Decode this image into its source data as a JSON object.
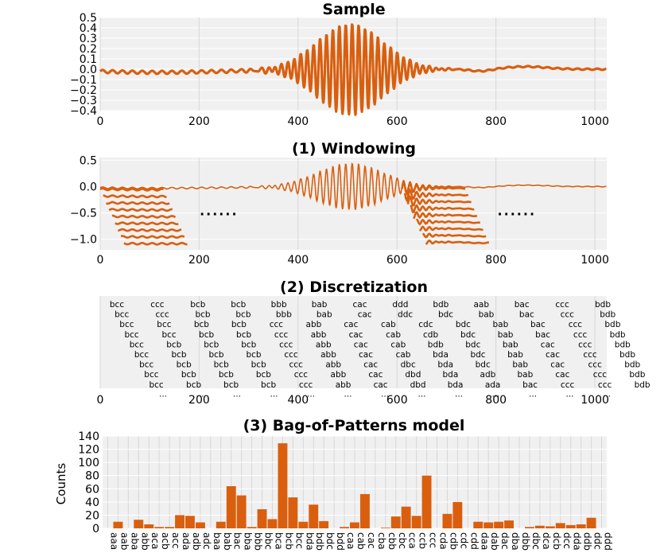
{
  "chart_data": [
    {
      "type": "line",
      "title": "Sample",
      "xlim": [
        0,
        1024
      ],
      "ylim": [
        -0.4,
        0.5
      ],
      "xticks": [
        "0",
        "200",
        "400",
        "600",
        "800",
        "1000"
      ],
      "yticks": [
        "0.5",
        "0.4",
        "0.3",
        "0.2",
        "0.1",
        "0.0",
        "−0.1",
        "−0.2",
        "−0.3",
        "−0.4"
      ],
      "grid": true,
      "color": "#d95f0e"
    },
    {
      "type": "line",
      "title": "(1) Windowing",
      "xlim": [
        0,
        1024
      ],
      "ylim": [
        -1.2,
        0.55
      ],
      "xticks": [
        "0",
        "200",
        "400",
        "600",
        "800",
        "1000"
      ],
      "yticks": [
        "0.5",
        "0.0",
        "−0.5",
        "−1.0"
      ],
      "ellipsis": "......",
      "grid": true,
      "color": "#d95f0e"
    },
    {
      "type": "table",
      "title": "(2) Discretization",
      "xticks": [
        "0",
        "200",
        "400",
        "600",
        "800",
        "1000"
      ],
      "ellipsis": "...",
      "rows": [
        [
          "bcc",
          "ccc",
          "bcb",
          "bcb",
          "bbb",
          "bab",
          "cac",
          "ddd",
          "bdb",
          "aab",
          "bac",
          "ccc",
          "bdb"
        ],
        [
          "bcc",
          "ccc",
          "bcb",
          "bcb",
          "bbb",
          "bab",
          "cac",
          "ddc",
          "bdc",
          "bab",
          "bac",
          "ccc",
          "bdb"
        ],
        [
          "bcc",
          "bcc",
          "bcb",
          "bcb",
          "ccc",
          "abb",
          "cac",
          "cab",
          "cdc",
          "bdc",
          "bab",
          "bac",
          "ccc",
          "bdb"
        ],
        [
          "bcc",
          "bcc",
          "bcb",
          "bcb",
          "ccc",
          "abb",
          "cac",
          "cab",
          "cdb",
          "bdc",
          "bab",
          "bac",
          "ccc",
          "bdb"
        ],
        [
          "bcc",
          "bcb",
          "bcb",
          "bcb",
          "ccc",
          "abb",
          "cac",
          "cab",
          "bdb",
          "bdc",
          "bab",
          "cac",
          "ccc",
          "bdb"
        ],
        [
          "bcc",
          "bcb",
          "bcb",
          "bcb",
          "ccc",
          "abb",
          "cac",
          "cab",
          "bda",
          "bdc",
          "bab",
          "cac",
          "ccc",
          "bdb"
        ],
        [
          "bcc",
          "bcb",
          "bcb",
          "bcb",
          "ccc",
          "abb",
          "cac",
          "dbc",
          "bda",
          "bdc",
          "bab",
          "cac",
          "ccc",
          "bdb"
        ],
        [
          "bcc",
          "bcb",
          "bcb",
          "bcb",
          "ccc",
          "abb",
          "cac",
          "dbd",
          "bda",
          "adb",
          "bab",
          "cac",
          "ccc",
          "bdb"
        ],
        [
          "bcc",
          "bcb",
          "bcb",
          "bcb",
          "ccc",
          "abb",
          "cac",
          "dbd",
          "bda",
          "ada",
          "bac",
          "ccc",
          "ccc",
          "bdb"
        ]
      ]
    },
    {
      "type": "bar",
      "title": "(3) Bag-of-Patterns model",
      "ylabel": "Counts",
      "ylim": [
        0,
        140
      ],
      "yticks": [
        "140",
        "120",
        "100",
        "80",
        "60",
        "40",
        "20",
        "0"
      ],
      "categories": [
        "aaa",
        "aab",
        "aba",
        "abb",
        "aca",
        "acb",
        "acc",
        "ada",
        "adb",
        "adc",
        "baa",
        "bab",
        "bac",
        "bba",
        "bbb",
        "bbc",
        "bca",
        "bcb",
        "bcc",
        "bda",
        "bdb",
        "bdc",
        "bdd",
        "caa",
        "cab",
        "cac",
        "cba",
        "cbb",
        "cbc",
        "cca",
        "ccb",
        "ccc",
        "cda",
        "cdb",
        "cdc",
        "cdd",
        "daa",
        "dab",
        "dac",
        "dba",
        "dbb",
        "dbc",
        "dca",
        "dcb",
        "dcc",
        "dda",
        "ddb",
        "ddc",
        "ddd"
      ],
      "values": [
        0,
        10,
        0,
        13,
        6,
        2,
        2,
        20,
        19,
        9,
        0,
        10,
        64,
        50,
        2,
        29,
        14,
        129,
        47,
        10,
        36,
        11,
        0,
        2,
        9,
        52,
        0,
        1,
        18,
        33,
        19,
        80,
        0,
        22,
        40,
        0,
        10,
        9,
        10,
        12,
        0,
        2,
        4,
        3,
        8,
        5,
        6,
        16,
        0
      ],
      "color": "#d95f0e",
      "grid": true
    }
  ]
}
